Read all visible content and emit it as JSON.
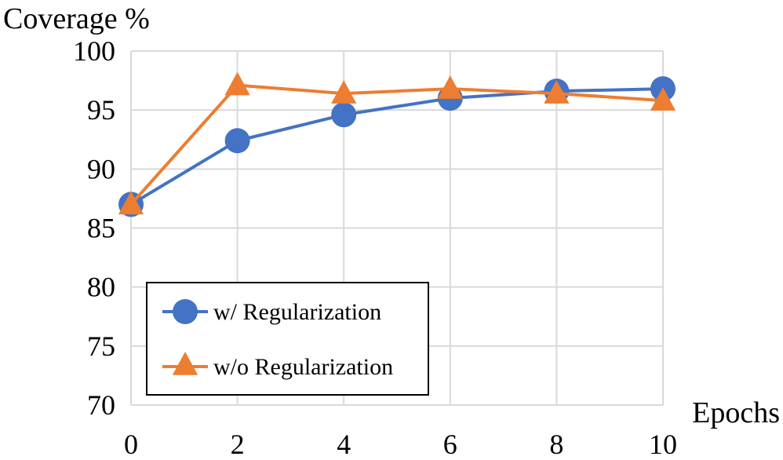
{
  "chart_data": {
    "type": "line",
    "ylabel": "Coverage %",
    "xlabel": "Epochs",
    "x": [
      0,
      2,
      4,
      6,
      8,
      10
    ],
    "xticks": [
      "0",
      "2",
      "4",
      "6",
      "8",
      "10"
    ],
    "yticks": [
      "70",
      "75",
      "80",
      "85",
      "90",
      "95",
      "100"
    ],
    "xlim": [
      0,
      10
    ],
    "ylim": [
      70,
      100
    ],
    "grid": true,
    "legend_position": "bottom-left",
    "series": [
      {
        "name": "w/ Regularization",
        "marker": "circle",
        "color": "#4472C4",
        "values": [
          87.0,
          92.4,
          94.6,
          96.0,
          96.6,
          96.8
        ]
      },
      {
        "name": "w/o Regularization",
        "marker": "triangle",
        "color": "#ED7D31",
        "values": [
          87.0,
          97.1,
          96.4,
          96.8,
          96.4,
          95.8
        ]
      }
    ]
  }
}
